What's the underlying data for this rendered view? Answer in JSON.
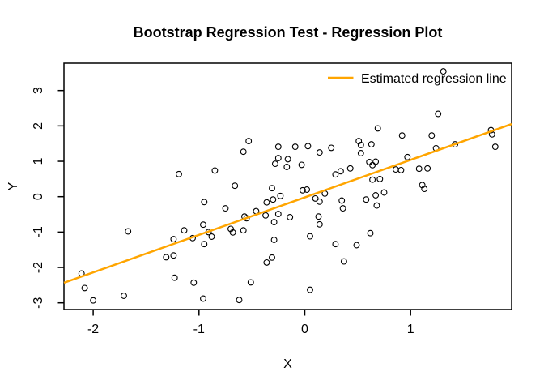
{
  "window": {
    "background": "#ffffff",
    "foreground": "#000000"
  },
  "chart_data": {
    "type": "scatter",
    "title": "Bootstrap Regression Test - Regression Plot",
    "xlabel": "X",
    "ylabel": "Y",
    "xlim": [
      -2.28,
      1.95
    ],
    "ylim": [
      -3.19,
      3.77
    ],
    "xticks": [
      -2,
      -1,
      0,
      1
    ],
    "yticks": [
      3,
      2,
      1,
      0,
      -1,
      -2,
      -3
    ],
    "grid": false,
    "legend": {
      "position": "topright",
      "label": "Estimated regression line",
      "line_color": "#FFA500"
    },
    "regression_line": {
      "slope": 1.06,
      "intercept": -0.02,
      "x_start": -2.276,
      "x_end": 1.955,
      "color": "#FFA500",
      "width": 2.5
    },
    "marker": {
      "shape": "open-circle",
      "color": "#000000",
      "radius": 3.4
    },
    "points": [
      [
        -2.11,
        -2.17
      ],
      [
        -2.08,
        -2.58
      ],
      [
        -2.0,
        -2.93
      ],
      [
        -1.71,
        -2.8
      ],
      [
        -1.23,
        -2.29
      ],
      [
        -1.05,
        -2.43
      ],
      [
        -0.96,
        -2.88
      ],
      [
        -0.62,
        -2.92
      ],
      [
        -0.51,
        -2.42
      ],
      [
        0.05,
        -2.63
      ],
      [
        -1.19,
        0.64
      ],
      [
        -0.85,
        0.74
      ],
      [
        -1.67,
        -0.98
      ],
      [
        -1.14,
        -0.95
      ],
      [
        -0.96,
        -0.79
      ],
      [
        -0.91,
        -1.0
      ],
      [
        -0.88,
        -1.13
      ],
      [
        -1.24,
        -1.2
      ],
      [
        -1.06,
        -1.17
      ],
      [
        -0.95,
        -1.34
      ],
      [
        -1.31,
        -1.71
      ],
      [
        -1.24,
        -1.66
      ],
      [
        -0.95,
        -0.15
      ],
      [
        -0.58,
        1.27
      ],
      [
        -0.53,
        1.57
      ],
      [
        -0.25,
        1.41
      ],
      [
        -0.09,
        1.41
      ],
      [
        0.03,
        1.43
      ],
      [
        0.14,
        1.25
      ],
      [
        0.25,
        1.38
      ],
      [
        -0.25,
        1.09
      ],
      [
        -0.28,
        0.93
      ],
      [
        -0.16,
        1.06
      ],
      [
        -0.17,
        0.84
      ],
      [
        -0.03,
        0.9
      ],
      [
        0.29,
        0.63
      ],
      [
        0.34,
        0.72
      ],
      [
        0.43,
        0.8
      ],
      [
        0.69,
        1.93
      ],
      [
        0.51,
        1.57
      ],
      [
        0.53,
        1.46
      ],
      [
        0.63,
        1.48
      ],
      [
        0.53,
        1.23
      ],
      [
        0.61,
        0.98
      ],
      [
        0.67,
        0.99
      ],
      [
        0.64,
        0.89
      ],
      [
        0.97,
        1.12
      ],
      [
        0.86,
        0.77
      ],
      [
        0.91,
        0.75
      ],
      [
        1.08,
        0.79
      ],
      [
        1.16,
        0.8
      ],
      [
        0.64,
        0.48
      ],
      [
        0.71,
        0.5
      ],
      [
        1.11,
        0.33
      ],
      [
        1.13,
        0.22
      ],
      [
        1.31,
        3.54
      ],
      [
        1.26,
        2.34
      ],
      [
        0.92,
        1.73
      ],
      [
        1.2,
        1.73
      ],
      [
        1.42,
        1.48
      ],
      [
        1.76,
        1.88
      ],
      [
        1.77,
        1.76
      ],
      [
        1.8,
        1.41
      ],
      [
        1.24,
        1.37
      ],
      [
        -0.66,
        0.31
      ],
      [
        -0.31,
        0.24
      ],
      [
        -0.02,
        0.18
      ],
      [
        0.02,
        0.2
      ],
      [
        0.19,
        0.09
      ],
      [
        0.1,
        -0.05
      ],
      [
        0.14,
        -0.14
      ],
      [
        -0.23,
        0.02
      ],
      [
        -0.3,
        -0.08
      ],
      [
        -0.36,
        -0.16
      ],
      [
        0.35,
        -0.11
      ],
      [
        0.36,
        -0.33
      ],
      [
        0.58,
        -0.08
      ],
      [
        0.67,
        0.04
      ],
      [
        0.75,
        0.12
      ],
      [
        0.68,
        -0.25
      ],
      [
        -0.75,
        -0.33
      ],
      [
        -0.57,
        -0.56
      ],
      [
        -0.55,
        -0.61
      ],
      [
        -0.46,
        -0.41
      ],
      [
        -0.37,
        -0.53
      ],
      [
        -0.25,
        -0.49
      ],
      [
        -0.29,
        -0.72
      ],
      [
        -0.14,
        -0.58
      ],
      [
        0.13,
        -0.56
      ],
      [
        0.14,
        -0.78
      ],
      [
        -0.7,
        -0.91
      ],
      [
        -0.68,
        -1.01
      ],
      [
        -0.58,
        -0.95
      ],
      [
        -0.29,
        -1.22
      ],
      [
        0.05,
        -1.12
      ],
      [
        0.62,
        -1.03
      ],
      [
        0.29,
        -1.34
      ],
      [
        0.49,
        -1.37
      ],
      [
        -0.31,
        -1.72
      ],
      [
        -0.36,
        -1.86
      ],
      [
        0.37,
        -1.83
      ]
    ]
  }
}
